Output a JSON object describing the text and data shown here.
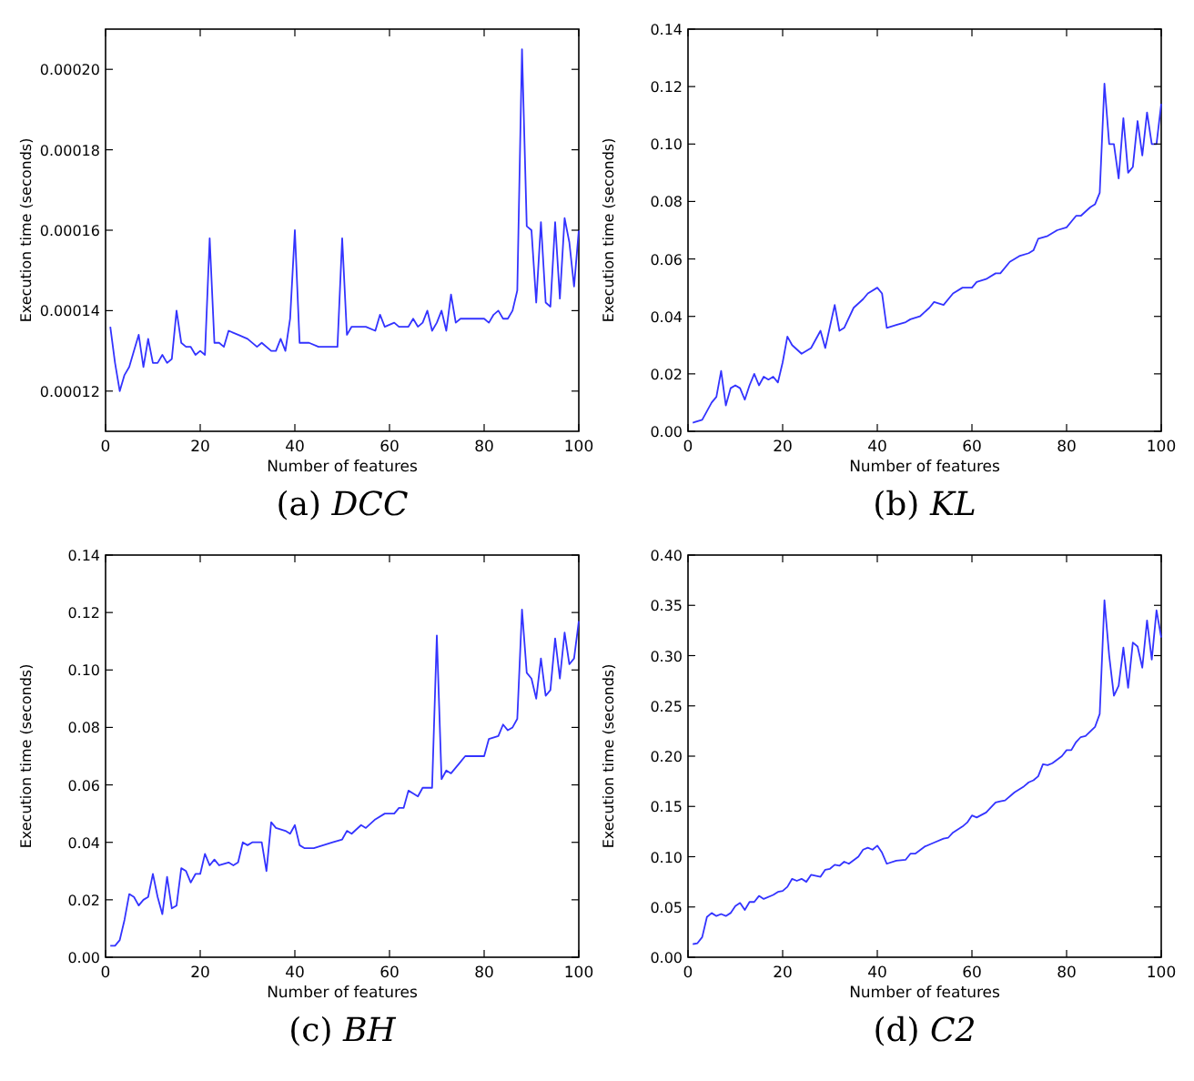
{
  "chart_data": [
    {
      "type": "line",
      "title": "(a) DCC",
      "xlabel": "Number of features",
      "ylabel": "Execution time (seconds)",
      "color": "#3333ff",
      "xlim": [
        0,
        100
      ],
      "ylim": [
        0.00011,
        0.00021
      ],
      "xticks": [
        0,
        20,
        40,
        60,
        80,
        100
      ],
      "yticks": [
        {
          "value": 0.00012,
          "label": "0.00012"
        },
        {
          "value": 0.00014,
          "label": "0.00014"
        },
        {
          "value": 0.00016,
          "label": "0.00016"
        },
        {
          "value": 0.00018,
          "label": "0.00018"
        },
        {
          "value": 0.0002,
          "label": "0.00020"
        }
      ],
      "x": [
        1,
        2,
        3,
        4,
        5,
        6,
        7,
        8,
        9,
        10,
        11,
        12,
        13,
        14,
        15,
        16,
        17,
        18,
        19,
        20,
        21,
        22,
        23,
        24,
        25,
        26,
        28,
        30,
        32,
        33,
        35,
        36,
        37,
        38,
        39,
        40,
        41,
        43,
        45,
        47,
        49,
        50,
        51,
        52,
        55,
        57,
        58,
        59,
        61,
        62,
        64,
        65,
        66,
        67,
        68,
        69,
        70,
        71,
        72,
        73,
        74,
        75,
        78,
        80,
        81,
        82,
        83,
        84,
        85,
        86,
        87,
        88,
        89,
        90,
        91,
        92,
        93,
        94,
        95,
        96,
        97,
        98,
        99,
        100
      ],
      "values": [
        0.000136,
        0.000127,
        0.00012,
        0.000124,
        0.000126,
        0.00013,
        0.000134,
        0.000126,
        0.000133,
        0.000127,
        0.000127,
        0.000129,
        0.000127,
        0.000128,
        0.00014,
        0.000132,
        0.000131,
        0.000131,
        0.000129,
        0.00013,
        0.000129,
        0.000158,
        0.000132,
        0.000132,
        0.000131,
        0.000135,
        0.000134,
        0.000133,
        0.000131,
        0.000132,
        0.00013,
        0.00013,
        0.000133,
        0.00013,
        0.000138,
        0.00016,
        0.000132,
        0.000132,
        0.000131,
        0.000131,
        0.000131,
        0.000158,
        0.000134,
        0.000136,
        0.000136,
        0.000135,
        0.000139,
        0.000136,
        0.000137,
        0.000136,
        0.000136,
        0.000138,
        0.000136,
        0.000137,
        0.00014,
        0.000135,
        0.000137,
        0.00014,
        0.000135,
        0.000144,
        0.000137,
        0.000138,
        0.000138,
        0.000138,
        0.000137,
        0.000139,
        0.00014,
        0.000138,
        0.000138,
        0.00014,
        0.000145,
        0.000205,
        0.000161,
        0.00016,
        0.000142,
        0.000162,
        0.000142,
        0.000141,
        0.000162,
        0.000143,
        0.000163,
        0.000157,
        0.000146,
        0.00016
      ]
    },
    {
      "type": "line",
      "title": "(b) KL",
      "xlabel": "Number of features",
      "ylabel": "Execution time (seconds)",
      "color": "#3333ff",
      "xlim": [
        0,
        100
      ],
      "ylim": [
        0,
        0.14
      ],
      "xticks": [
        0,
        20,
        40,
        60,
        80,
        100
      ],
      "yticks": [
        {
          "value": 0,
          "label": "0.00"
        },
        {
          "value": 0.02,
          "label": "0.02"
        },
        {
          "value": 0.04,
          "label": "0.04"
        },
        {
          "value": 0.06,
          "label": "0.06"
        },
        {
          "value": 0.08,
          "label": "0.08"
        },
        {
          "value": 0.1,
          "label": "0.10"
        },
        {
          "value": 0.12,
          "label": "0.12"
        },
        {
          "value": 0.14,
          "label": "0.14"
        }
      ],
      "x": [
        1,
        3,
        4,
        5,
        6,
        7,
        8,
        9,
        10,
        11,
        12,
        13,
        14,
        15,
        16,
        17,
        18,
        19,
        20,
        21,
        22,
        24,
        26,
        28,
        29,
        31,
        32,
        33,
        35,
        37,
        38,
        40,
        41,
        42,
        44,
        46,
        47,
        49,
        51,
        52,
        54,
        56,
        58,
        60,
        61,
        63,
        65,
        66,
        68,
        70,
        72,
        73,
        74,
        76,
        78,
        80,
        82,
        83,
        85,
        86,
        87,
        88,
        89,
        90,
        91,
        92,
        93,
        94,
        95,
        96,
        97,
        98,
        99,
        100
      ],
      "values": [
        0.003,
        0.004,
        0.007,
        0.01,
        0.012,
        0.021,
        0.009,
        0.015,
        0.016,
        0.015,
        0.011,
        0.016,
        0.02,
        0.016,
        0.019,
        0.018,
        0.019,
        0.017,
        0.024,
        0.033,
        0.03,
        0.027,
        0.029,
        0.035,
        0.029,
        0.044,
        0.035,
        0.036,
        0.043,
        0.046,
        0.048,
        0.05,
        0.048,
        0.036,
        0.037,
        0.038,
        0.039,
        0.04,
        0.043,
        0.045,
        0.044,
        0.048,
        0.05,
        0.05,
        0.052,
        0.053,
        0.055,
        0.055,
        0.059,
        0.061,
        0.062,
        0.063,
        0.067,
        0.068,
        0.07,
        0.071,
        0.075,
        0.075,
        0.078,
        0.079,
        0.083,
        0.121,
        0.1,
        0.1,
        0.088,
        0.109,
        0.09,
        0.092,
        0.108,
        0.096,
        0.111,
        0.1,
        0.1,
        0.114
      ]
    },
    {
      "type": "line",
      "title": "(c) BH",
      "xlabel": "Number of features",
      "ylabel": "Execution time (seconds)",
      "color": "#3333ff",
      "xlim": [
        0,
        100
      ],
      "ylim": [
        0,
        0.14
      ],
      "xticks": [
        0,
        20,
        40,
        60,
        80,
        100
      ],
      "yticks": [
        {
          "value": 0,
          "label": "0.00"
        },
        {
          "value": 0.02,
          "label": "0.02"
        },
        {
          "value": 0.04,
          "label": "0.04"
        },
        {
          "value": 0.06,
          "label": "0.06"
        },
        {
          "value": 0.08,
          "label": "0.08"
        },
        {
          "value": 0.1,
          "label": "0.10"
        },
        {
          "value": 0.12,
          "label": "0.12"
        },
        {
          "value": 0.14,
          "label": "0.14"
        }
      ],
      "x": [
        1,
        2,
        3,
        4,
        5,
        6,
        7,
        8,
        9,
        10,
        11,
        12,
        13,
        14,
        15,
        16,
        17,
        18,
        19,
        20,
        21,
        22,
        23,
        24,
        26,
        27,
        28,
        29,
        30,
        31,
        33,
        34,
        35,
        36,
        38,
        39,
        40,
        41,
        42,
        44,
        46,
        48,
        50,
        51,
        52,
        54,
        55,
        57,
        59,
        61,
        62,
        63,
        64,
        65,
        66,
        67,
        69,
        70,
        71,
        72,
        73,
        75,
        76,
        77,
        79,
        80,
        81,
        83,
        84,
        85,
        86,
        87,
        88,
        89,
        90,
        91,
        92,
        93,
        94,
        95,
        96,
        97,
        98,
        99,
        100
      ],
      "values": [
        0.004,
        0.004,
        0.006,
        0.013,
        0.022,
        0.021,
        0.018,
        0.02,
        0.021,
        0.029,
        0.021,
        0.015,
        0.028,
        0.017,
        0.018,
        0.031,
        0.03,
        0.026,
        0.029,
        0.029,
        0.036,
        0.032,
        0.034,
        0.032,
        0.033,
        0.032,
        0.033,
        0.04,
        0.039,
        0.04,
        0.04,
        0.03,
        0.047,
        0.045,
        0.044,
        0.043,
        0.046,
        0.039,
        0.038,
        0.038,
        0.039,
        0.04,
        0.041,
        0.044,
        0.043,
        0.046,
        0.045,
        0.048,
        0.05,
        0.05,
        0.052,
        0.052,
        0.058,
        0.057,
        0.056,
        0.059,
        0.059,
        0.112,
        0.062,
        0.065,
        0.064,
        0.068,
        0.07,
        0.07,
        0.07,
        0.07,
        0.076,
        0.077,
        0.081,
        0.079,
        0.08,
        0.083,
        0.121,
        0.099,
        0.097,
        0.09,
        0.104,
        0.091,
        0.093,
        0.111,
        0.097,
        0.113,
        0.102,
        0.104,
        0.117
      ]
    },
    {
      "type": "line",
      "title": "(d) C2",
      "xlabel": "Number of features",
      "ylabel": "Execution time (seconds)",
      "color": "#3333ff",
      "xlim": [
        0,
        100
      ],
      "ylim": [
        0,
        0.4
      ],
      "xticks": [
        0,
        20,
        40,
        60,
        80,
        100
      ],
      "yticks": [
        {
          "value": 0,
          "label": "0.00"
        },
        {
          "value": 0.05,
          "label": "0.05"
        },
        {
          "value": 0.1,
          "label": "0.10"
        },
        {
          "value": 0.15,
          "label": "0.15"
        },
        {
          "value": 0.2,
          "label": "0.20"
        },
        {
          "value": 0.25,
          "label": "0.25"
        },
        {
          "value": 0.3,
          "label": "0.30"
        },
        {
          "value": 0.35,
          "label": "0.35"
        },
        {
          "value": 0.4,
          "label": "0.40"
        }
      ],
      "x": [
        1,
        2,
        3,
        4,
        5,
        6,
        7,
        8,
        9,
        10,
        11,
        12,
        13,
        14,
        15,
        16,
        18,
        19,
        20,
        21,
        22,
        23,
        24,
        25,
        26,
        28,
        29,
        30,
        31,
        32,
        33,
        34,
        36,
        37,
        38,
        39,
        40,
        41,
        42,
        44,
        46,
        47,
        48,
        50,
        52,
        54,
        55,
        56,
        58,
        59,
        60,
        61,
        63,
        65,
        66,
        67,
        69,
        71,
        72,
        73,
        74,
        75,
        76,
        77,
        79,
        80,
        81,
        82,
        83,
        84,
        86,
        87,
        88,
        89,
        90,
        91,
        92,
        93,
        94,
        95,
        96,
        97,
        98,
        99,
        100
      ],
      "values": [
        0.013,
        0.014,
        0.02,
        0.04,
        0.044,
        0.041,
        0.043,
        0.041,
        0.044,
        0.051,
        0.054,
        0.047,
        0.055,
        0.055,
        0.061,
        0.058,
        0.062,
        0.065,
        0.066,
        0.07,
        0.078,
        0.076,
        0.078,
        0.075,
        0.082,
        0.08,
        0.087,
        0.088,
        0.092,
        0.091,
        0.095,
        0.093,
        0.1,
        0.107,
        0.109,
        0.107,
        0.111,
        0.104,
        0.093,
        0.096,
        0.097,
        0.103,
        0.103,
        0.11,
        0.114,
        0.118,
        0.119,
        0.124,
        0.13,
        0.134,
        0.141,
        0.139,
        0.144,
        0.154,
        0.155,
        0.156,
        0.164,
        0.17,
        0.174,
        0.176,
        0.18,
        0.192,
        0.191,
        0.193,
        0.2,
        0.206,
        0.206,
        0.214,
        0.219,
        0.22,
        0.229,
        0.242,
        0.355,
        0.3,
        0.26,
        0.27,
        0.308,
        0.268,
        0.313,
        0.309,
        0.288,
        0.335,
        0.296,
        0.345,
        0.318
      ]
    }
  ]
}
